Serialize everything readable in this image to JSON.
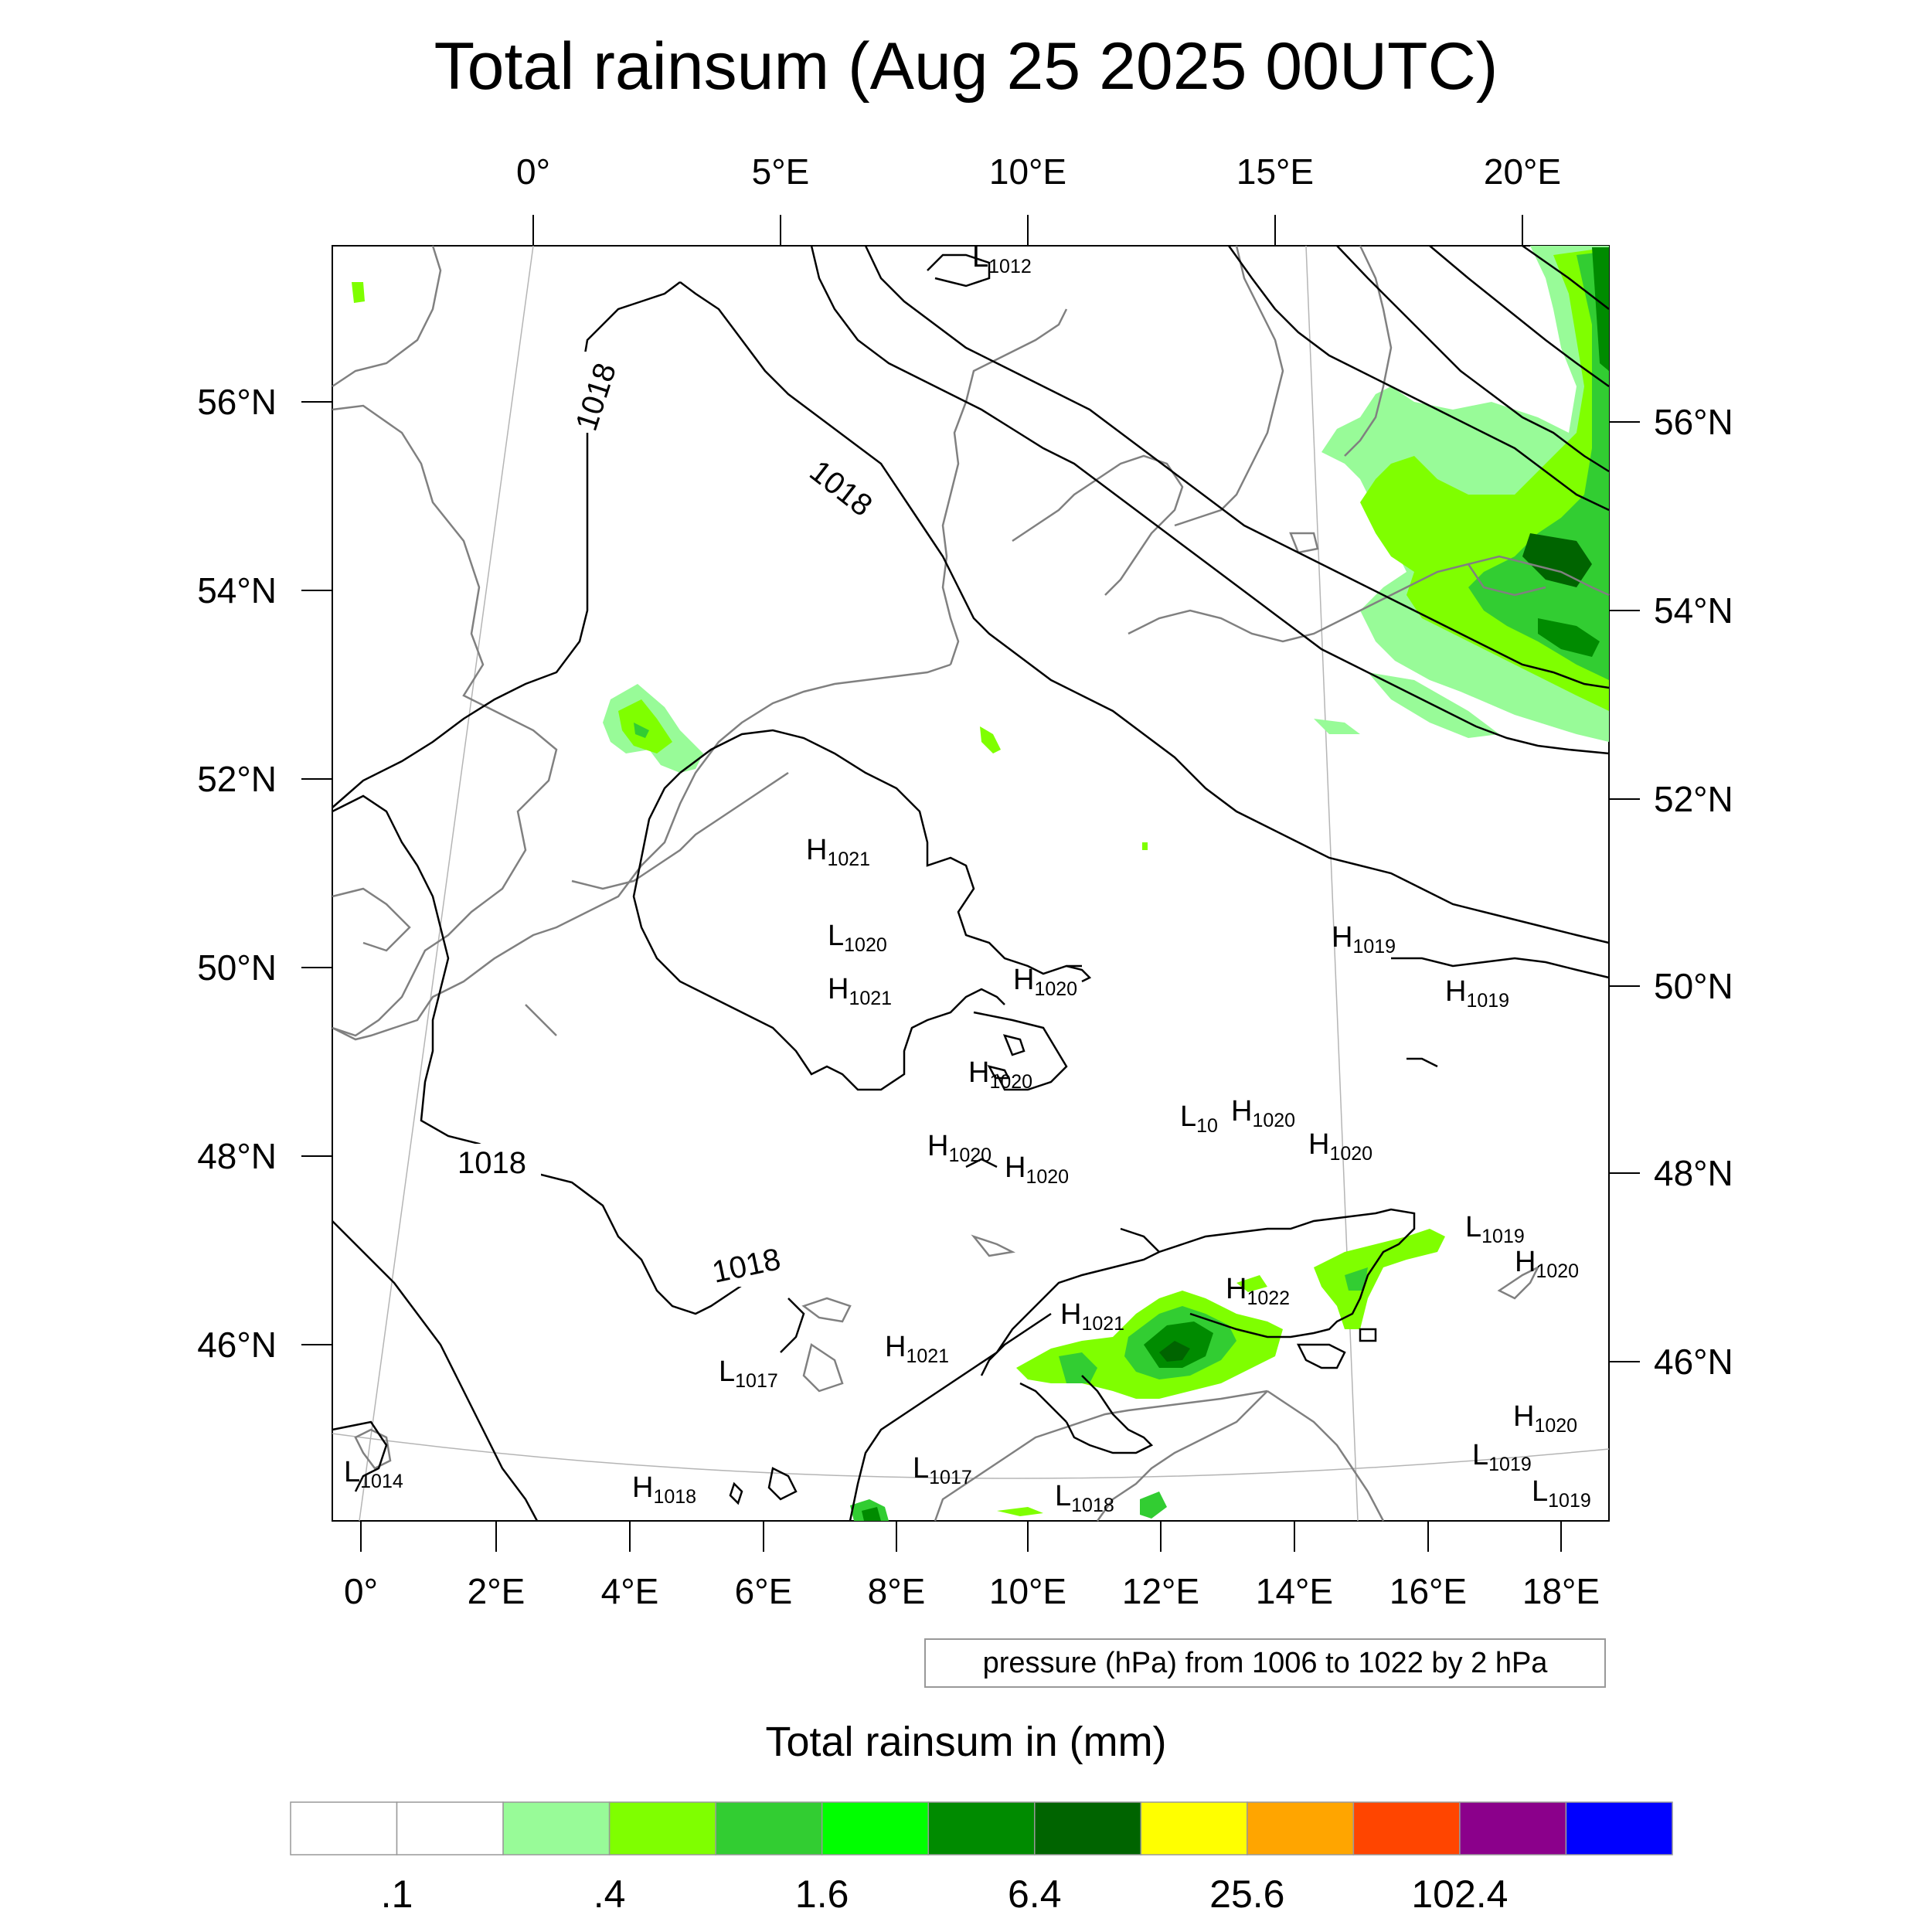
{
  "title": "Total rainsum (Aug 25 2025 00UTC)",
  "lon_top_labels": [
    "0°",
    "5°E",
    "10°E",
    "15°E",
    "20°E"
  ],
  "lon_bottom_labels": [
    "0°",
    "2°E",
    "4°E",
    "6°E",
    "8°E",
    "10°E",
    "12°E",
    "14°E",
    "16°E",
    "18°E"
  ],
  "lat_left_labels": [
    "56°N",
    "54°N",
    "52°N",
    "50°N",
    "48°N",
    "46°N"
  ],
  "lat_right_labels": [
    "56°N",
    "54°N",
    "52°N",
    "50°N",
    "48°N",
    "46°N"
  ],
  "contour_labels": [
    "1018",
    "1018",
    "1018",
    "1018"
  ],
  "pressure_centers": [
    {
      "type": "L",
      "value": "1012"
    },
    {
      "type": "H",
      "value": "1021"
    },
    {
      "type": "L",
      "value": "1020"
    },
    {
      "type": "H",
      "value": "1021"
    },
    {
      "type": "H",
      "value": "1020"
    },
    {
      "type": "H",
      "value": "1020"
    },
    {
      "type": "H",
      "value": "1019"
    },
    {
      "type": "H",
      "value": "1019"
    },
    {
      "type": "L",
      "value": "10"
    },
    {
      "type": "H",
      "value": "1020"
    },
    {
      "type": "H",
      "value": "1020"
    },
    {
      "type": "H",
      "value": "1020"
    },
    {
      "type": "H",
      "value": "1020"
    },
    {
      "type": "L",
      "value": "1019"
    },
    {
      "type": "H",
      "value": "1020"
    },
    {
      "type": "H",
      "value": "1022"
    },
    {
      "type": "H",
      "value": "1021"
    },
    {
      "type": "H",
      "value": "1021"
    },
    {
      "type": "L",
      "value": "1017"
    },
    {
      "type": "H",
      "value": "1020"
    },
    {
      "type": "L",
      "value": "1019"
    },
    {
      "type": "L",
      "value": "1019"
    },
    {
      "type": "L",
      "value": "1014"
    },
    {
      "type": "H",
      "value": "1018"
    },
    {
      "type": "L",
      "value": "1017"
    },
    {
      "type": "L",
      "value": "1018"
    }
  ],
  "contour_info": "pressure (hPa) from 1006 to 1022 by 2 hPa",
  "colorbar": {
    "title": "Total rainsum in (mm)",
    "colors": [
      "#ffffff",
      "#ffffff",
      "#98fb98",
      "#7fff00",
      "#32cd32",
      "#00ff00",
      "#008b00",
      "#006400",
      "#ffff00",
      "#ffa500",
      "#ff4500",
      "#8b008b",
      "#0000ff"
    ],
    "labels": [
      ".1",
      ".4",
      "1.6",
      "6.4",
      "25.6",
      "102.4"
    ]
  },
  "colors": {
    "light_green": "#98fb98",
    "chartreuse": "#7fff00",
    "lime_green": "#32cd32",
    "green": "#00ff00",
    "dark_green": "#008b00",
    "darker_green": "#006400",
    "coastline": "#808080",
    "isobar": "#000000"
  }
}
